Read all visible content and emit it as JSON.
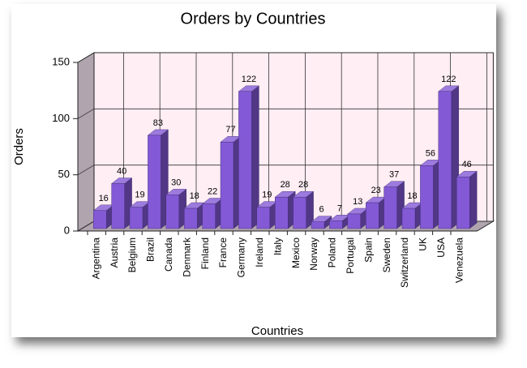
{
  "chart_data": {
    "type": "bar",
    "title": "Orders by Countries",
    "x_label": "Countries",
    "y_label": "Orders",
    "categories": [
      "Argentina",
      "Austria",
      "Belgium",
      "Brazil",
      "Canada",
      "Denmark",
      "Finland",
      "France",
      "Germany",
      "Ireland",
      "Italy",
      "Mexico",
      "Norway",
      "Poland",
      "Portugal",
      "Spain",
      "Sweden",
      "Switzerland",
      "UK",
      "USA",
      "Venezuela"
    ],
    "values": [
      16,
      40,
      19,
      83,
      30,
      18,
      22,
      77,
      122,
      19,
      28,
      28,
      6,
      7,
      13,
      23,
      37,
      18,
      56,
      122,
      46
    ],
    "color": "#8359d6",
    "ylim": [
      0,
      150
    ],
    "yticks": [
      0,
      50,
      100,
      150
    ],
    "grid": true
  }
}
